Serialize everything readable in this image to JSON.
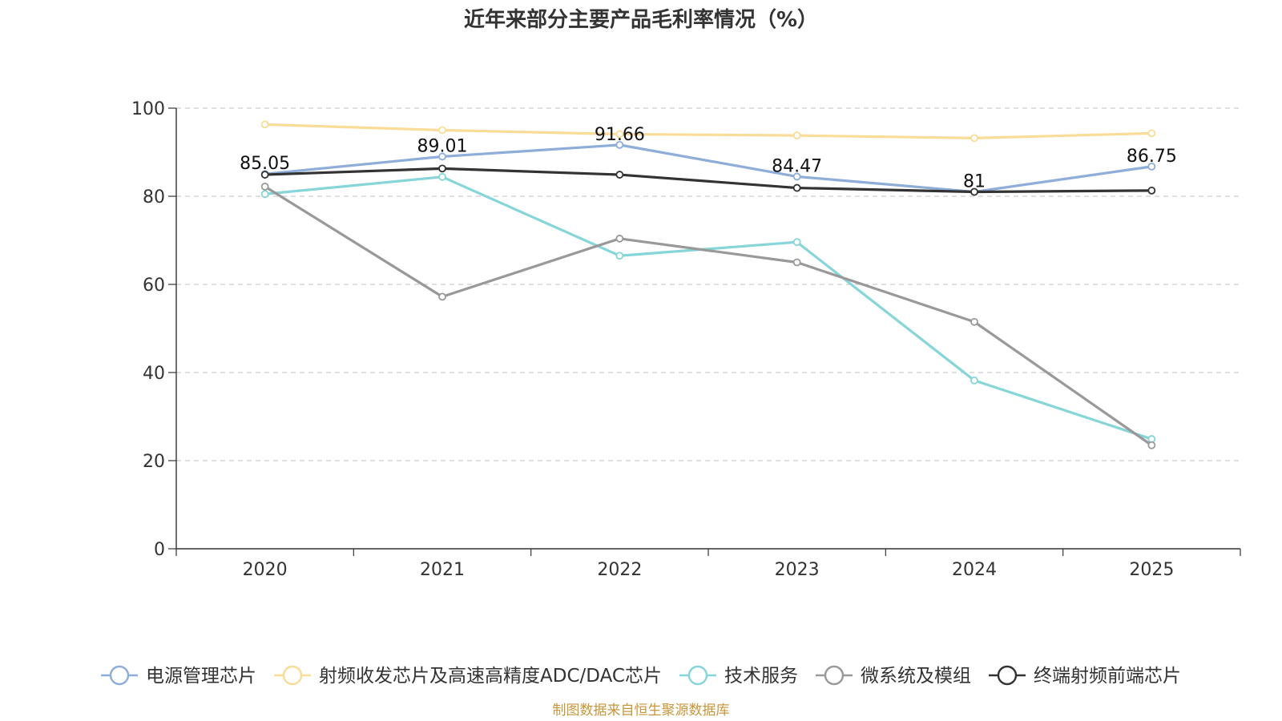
{
  "chart_data": {
    "type": "line",
    "title": "近年来部分主要产品毛利率情况（%）",
    "xlabel": "",
    "ylabel": "",
    "categories": [
      "2020",
      "2021",
      "2022",
      "2023",
      "2024",
      "2025"
    ],
    "ylim": [
      0,
      100
    ],
    "yticks": [
      0,
      20,
      40,
      60,
      80,
      100
    ],
    "grid": true,
    "legend_position": "bottom",
    "series": [
      {
        "name": "电源管理芯片",
        "color": "#8eadd8",
        "values": [
          85.05,
          89.01,
          91.66,
          84.47,
          81,
          86.75
        ],
        "labels": [
          "85.05",
          "89.01",
          "91.66",
          "84.47",
          "81",
          "86.75"
        ]
      },
      {
        "name": "射频收发芯片及高速高精度ADC/DAC芯片",
        "color": "#f8dc98",
        "values": [
          96.3,
          95.0,
          94.1,
          93.8,
          93.2,
          94.3
        ]
      },
      {
        "name": "技术服务",
        "color": "#86d5d8",
        "values": [
          80.5,
          84.4,
          66.5,
          69.6,
          38.2,
          24.9
        ]
      },
      {
        "name": "微系统及模组",
        "color": "#999999",
        "values": [
          82.2,
          57.2,
          70.4,
          65.0,
          51.5,
          23.5
        ]
      },
      {
        "name": "终端射频前端芯片",
        "color": "#333333",
        "values": [
          84.9,
          86.3,
          84.9,
          81.9,
          81.0,
          81.3
        ]
      }
    ],
    "source": "制图数据来自恒生聚源数据库"
  }
}
